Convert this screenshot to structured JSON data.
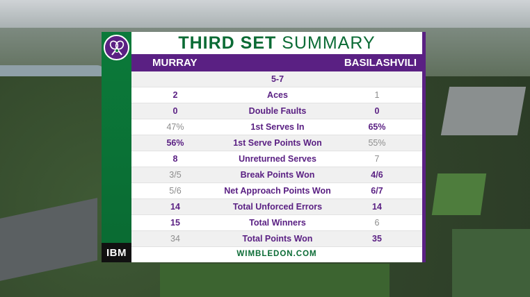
{
  "graphic": {
    "title_bold": "THIRD SET",
    "title_rest": "SUMMARY",
    "player_left": "MURRAY",
    "player_right": "BASILASHVILI",
    "sponsor": "IBM",
    "website": "WIMBLEDON.COM",
    "logo_icon": "wimbledon-crossed-rackets-icon",
    "colors": {
      "purple": "#5a2083",
      "green": "#0b6b35"
    }
  },
  "rows": [
    {
      "left": "",
      "label": "5-7",
      "right": "",
      "left_win": false,
      "right_win": false
    },
    {
      "left": "2",
      "label": "Aces",
      "right": "1",
      "left_win": true,
      "right_win": false
    },
    {
      "left": "0",
      "label": "Double Faults",
      "right": "0",
      "left_win": true,
      "right_win": true
    },
    {
      "left": "47%",
      "label": "1st Serves In",
      "right": "65%",
      "left_win": false,
      "right_win": true
    },
    {
      "left": "56%",
      "label": "1st Serve Points Won",
      "right": "55%",
      "left_win": true,
      "right_win": false
    },
    {
      "left": "8",
      "label": "Unreturned Serves",
      "right": "7",
      "left_win": true,
      "right_win": false
    },
    {
      "left": "3/5",
      "label": "Break Points Won",
      "right": "4/6",
      "left_win": false,
      "right_win": true
    },
    {
      "left": "5/6",
      "label": "Net Approach Points Won",
      "right": "6/7",
      "left_win": false,
      "right_win": true
    },
    {
      "left": "14",
      "label": "Total Unforced Errors",
      "right": "14",
      "left_win": true,
      "right_win": true
    },
    {
      "left": "15",
      "label": "Total Winners",
      "right": "6",
      "left_win": true,
      "right_win": false
    },
    {
      "left": "34",
      "label": "Total Points Won",
      "right": "35",
      "left_win": false,
      "right_win": true
    }
  ]
}
